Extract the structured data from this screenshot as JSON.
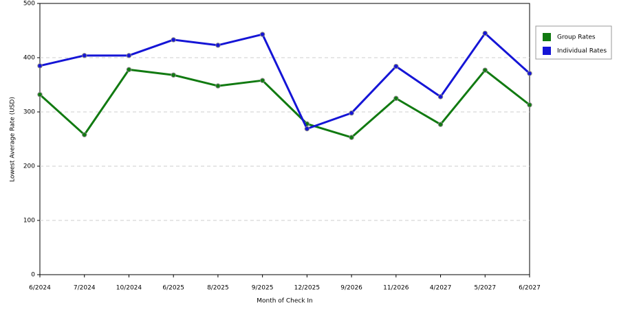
{
  "chart_data": {
    "type": "line",
    "categories": [
      "6/2024",
      "7/2024",
      "10/2024",
      "6/2025",
      "8/2025",
      "9/2025",
      "12/2025",
      "9/2026",
      "11/2026",
      "4/2027",
      "5/2027",
      "6/2027"
    ],
    "series": [
      {
        "name": "Group Rates",
        "color": "#117a11",
        "values": [
          332,
          258,
          378,
          368,
          348,
          358,
          278,
          253,
          325,
          277,
          377,
          313
        ]
      },
      {
        "name": "Individual Rates",
        "color": "#1515d6",
        "values": [
          385,
          404,
          404,
          433,
          423,
          443,
          269,
          298,
          384,
          328,
          445,
          371
        ]
      }
    ],
    "x_label": "Month of Check In",
    "y_label": "Lowest Average Rate (USD)",
    "ylim": [
      0,
      500
    ],
    "yticks": [
      0,
      100,
      200,
      300,
      400,
      500
    ],
    "grid": true,
    "legend": "right"
  }
}
